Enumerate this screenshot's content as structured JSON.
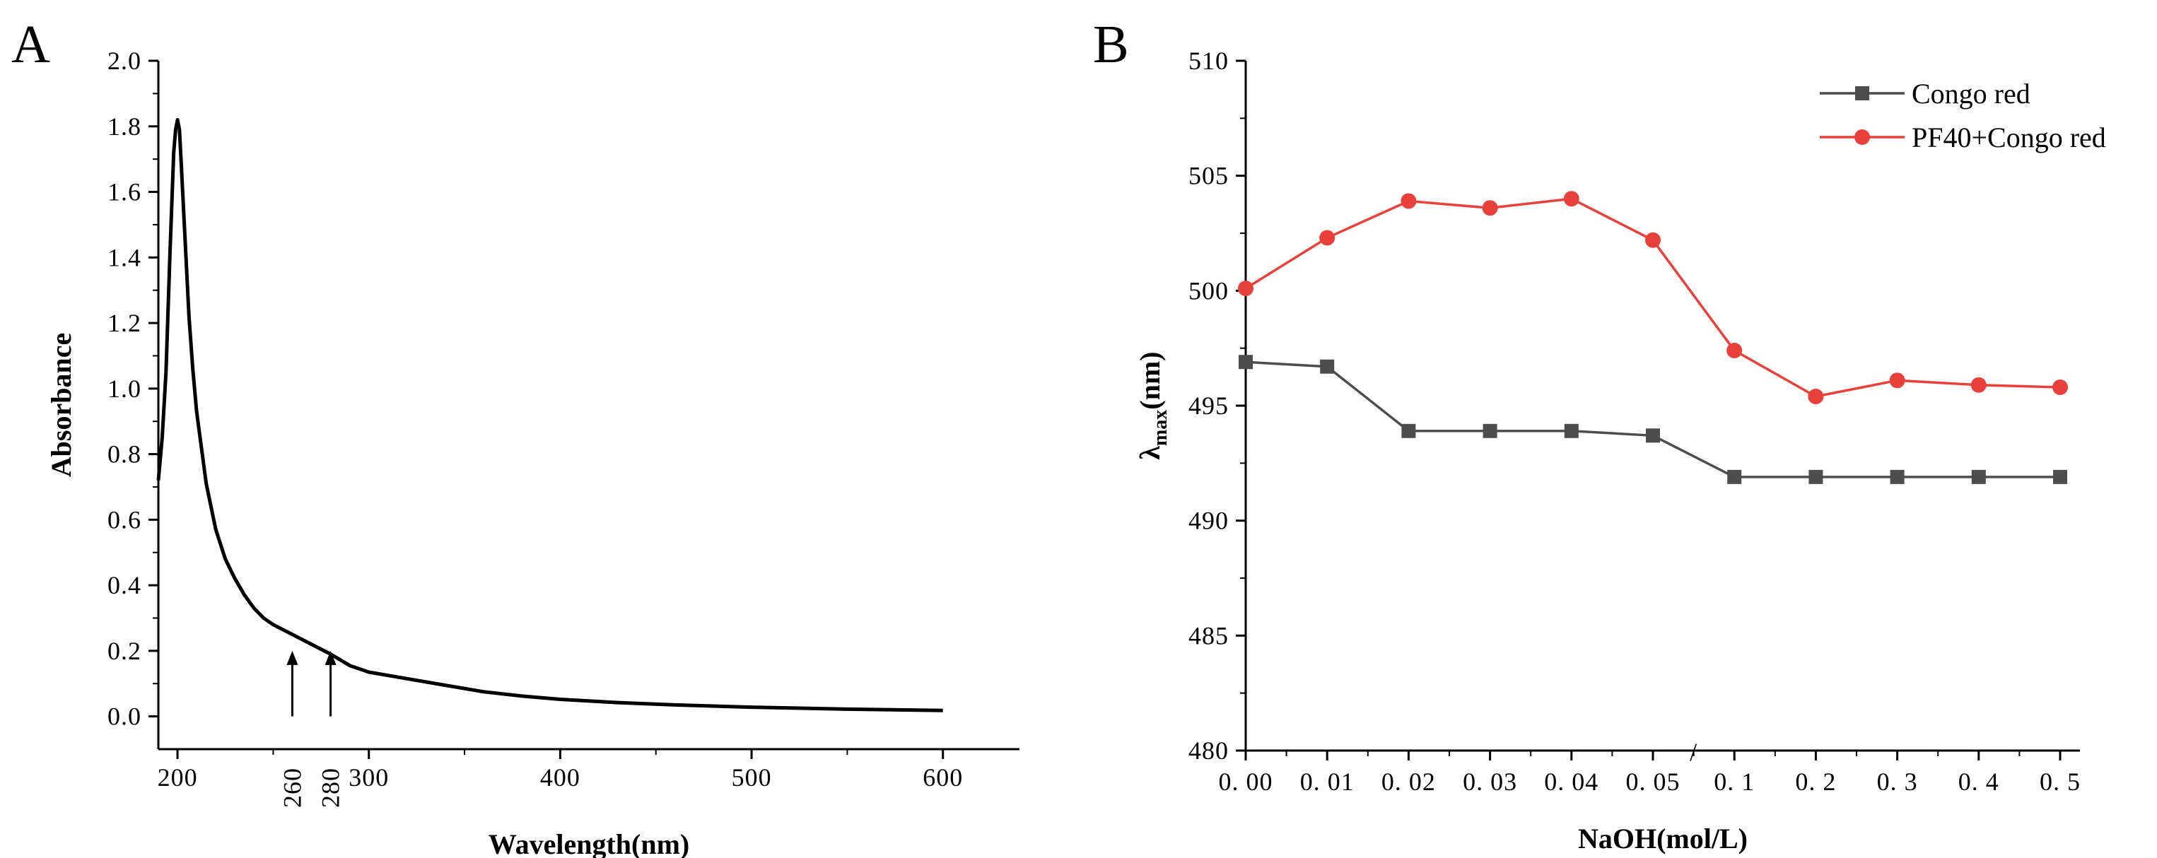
{
  "chart_data": [
    {
      "panel": "A",
      "type": "line",
      "title": "",
      "xlabel": "Wavelength(nm)",
      "ylabel": "Absorbance",
      "xlim": [
        190,
        640
      ],
      "ylim": [
        -0.1,
        2.0
      ],
      "xticks": [
        200,
        300,
        400,
        500,
        600
      ],
      "yticks": [
        "0.0",
        "0.2",
        "0.4",
        "0.6",
        "0.8",
        "1.0",
        "1.2",
        "1.4",
        "1.6",
        "1.8",
        "2.0"
      ],
      "grid": false,
      "annotations": [
        {
          "label": "260",
          "x": 260,
          "arrow_from": 0.0,
          "arrow_to": 0.2
        },
        {
          "label": "280",
          "x": 280,
          "arrow_from": 0.0,
          "arrow_to": 0.2
        }
      ],
      "series": [
        {
          "name": "Absorbance",
          "color": "#000000",
          "x": [
            190,
            192,
            194,
            196,
            198,
            199,
            200,
            201,
            202,
            204,
            206,
            208,
            210,
            215,
            220,
            225,
            230,
            235,
            240,
            245,
            250,
            260,
            270,
            280,
            290,
            300,
            320,
            340,
            360,
            380,
            400,
            430,
            460,
            500,
            550,
            600
          ],
          "y": [
            0.72,
            0.85,
            1.05,
            1.4,
            1.72,
            1.79,
            1.82,
            1.79,
            1.68,
            1.45,
            1.22,
            1.06,
            0.93,
            0.71,
            0.57,
            0.48,
            0.42,
            0.37,
            0.33,
            0.3,
            0.28,
            0.25,
            0.22,
            0.19,
            0.155,
            0.135,
            0.115,
            0.095,
            0.075,
            0.062,
            0.052,
            0.042,
            0.035,
            0.028,
            0.022,
            0.018
          ]
        }
      ]
    },
    {
      "panel": "B",
      "type": "line",
      "title": "",
      "xlabel": "NaOH(mol/L)",
      "ylabel_main": "λ",
      "ylabel_sub": "max",
      "ylabel_suffix": "(nm)",
      "categories": [
        "0. 00",
        "0. 01",
        "0. 02",
        "0. 03",
        "0. 04",
        "0. 05",
        "0. 1",
        "0. 2",
        "0. 3",
        "0. 4",
        "0. 5"
      ],
      "axis_break_label": "/",
      "ylim": [
        480,
        510
      ],
      "yticks": [
        "480",
        "485",
        "490",
        "495",
        "500",
        "505",
        "510"
      ],
      "grid": false,
      "legend": "top-right",
      "series": [
        {
          "name": "Congo red",
          "color": "#4d4d4d",
          "marker": "square",
          "values": [
            496.9,
            496.7,
            493.9,
            493.9,
            493.9,
            493.7,
            491.9,
            491.9,
            491.9,
            491.9,
            491.9
          ]
        },
        {
          "name": "PF40+Congo red",
          "color": "#e8403a",
          "marker": "circle",
          "values": [
            500.1,
            502.3,
            503.9,
            503.6,
            504.0,
            502.2,
            497.4,
            495.4,
            496.1,
            495.9,
            495.8
          ]
        }
      ]
    }
  ]
}
